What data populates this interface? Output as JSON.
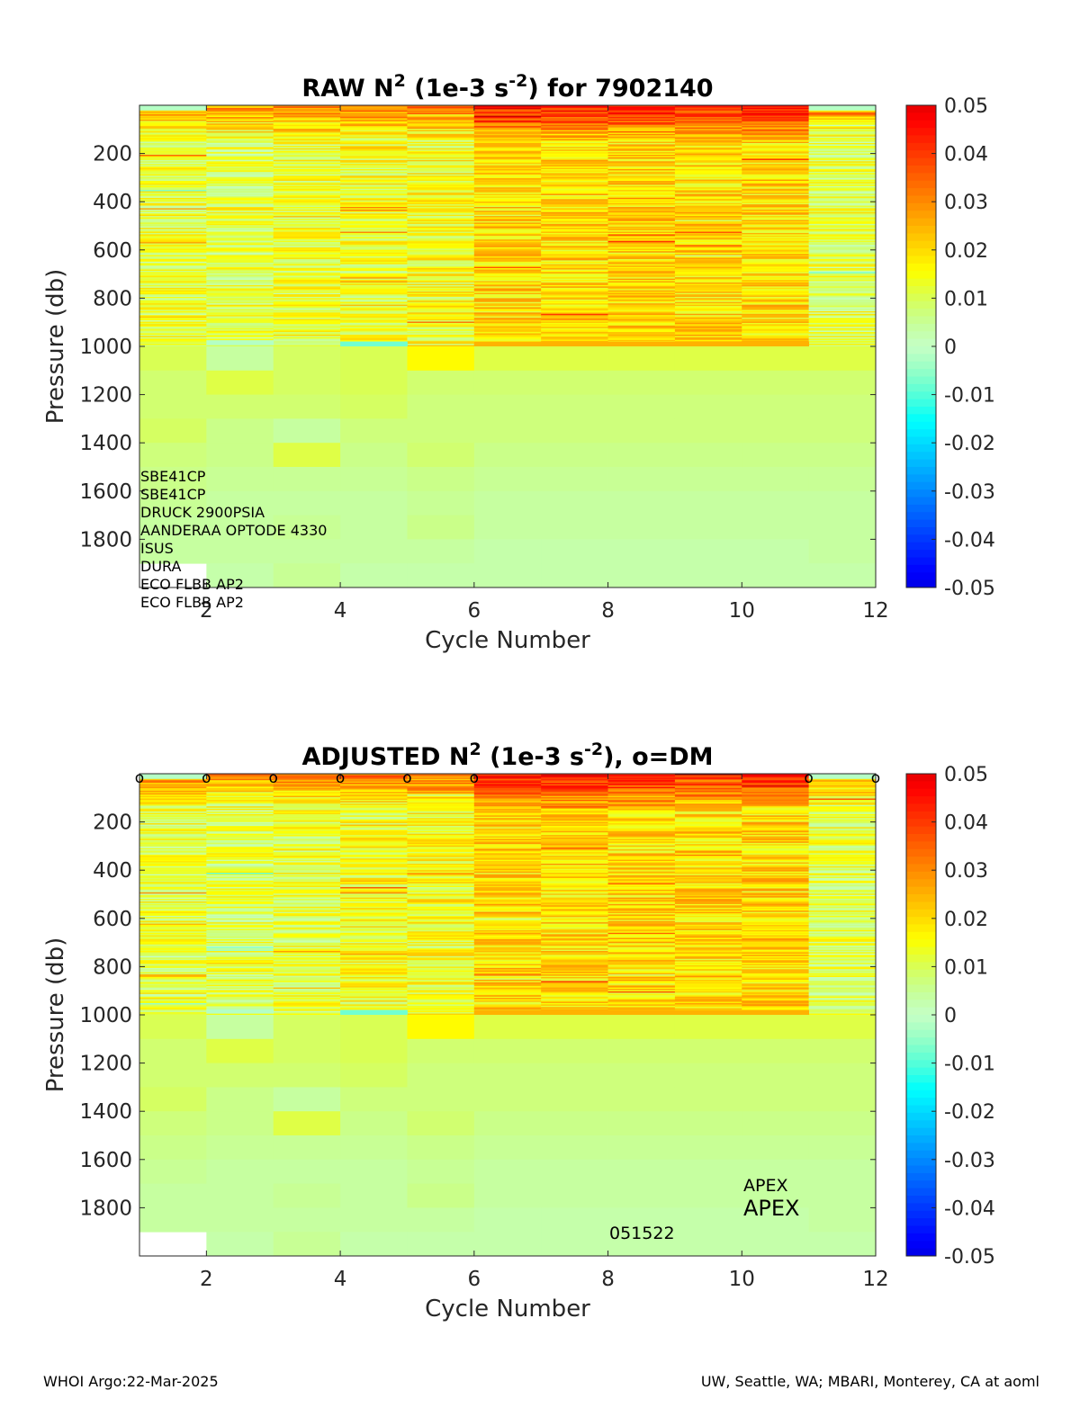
{
  "footer": {
    "left": "WHOI Argo:22-Mar-2025",
    "right": "UW, Seattle, WA; MBARI, Monterey, CA at aoml"
  },
  "chart_data": [
    {
      "type": "heatmap",
      "panel": "raw",
      "title_parts": [
        "RAW N",
        "2",
        " (1e-3 s",
        "-2",
        ") for 7902140"
      ],
      "xlabel": "Cycle Number",
      "ylabel": "Pressure (db)",
      "xlim": [
        1,
        12
      ],
      "ylim": [
        2000,
        0
      ],
      "xticks": [
        2,
        4,
        6,
        8,
        10,
        12
      ],
      "yticks": [
        200,
        400,
        600,
        800,
        1000,
        1200,
        1400,
        1600,
        1800
      ],
      "colorbar": {
        "colormap": "jet",
        "clim": [
          -0.05,
          0.05
        ],
        "ticks": [
          0.05,
          0.04,
          0.03,
          0.02,
          0.01,
          0,
          -0.01,
          -0.02,
          -0.03,
          -0.04,
          -0.05
        ],
        "tick_labels": [
          "0.05",
          "0.04",
          "0.03",
          "0.02",
          "0.01",
          "0",
          "-0.01",
          "-0.02",
          "-0.03",
          "-0.04",
          "-0.05"
        ]
      },
      "sensors": [
        "SBE41CP",
        "SBE41CP",
        "DRUCK 2900PSIA",
        "AANDERAA OPTODE 4330",
        "ISUS",
        "DURA",
        "ECO FLBB AP2",
        "ECO FLBB AP2"
      ],
      "cycles": [
        1,
        2,
        3,
        4,
        5,
        6,
        7,
        8,
        9,
        10,
        11
      ],
      "upper_mean": [
        0.011,
        0.01,
        0.012,
        0.013,
        0.014,
        0.02,
        0.02,
        0.02,
        0.02,
        0.02,
        0.01
      ],
      "deep_bins": [
        {
          "p0": 1000,
          "p1": 1100,
          "values": [
            0.01,
            0.004,
            0.009,
            0.01,
            0.016,
            0.011,
            0.011,
            0.011,
            0.011,
            0.011,
            0.011
          ]
        },
        {
          "p0": 1100,
          "p1": 1200,
          "values": [
            0.008,
            0.011,
            0.009,
            0.01,
            0.008,
            0.008,
            0.008,
            0.008,
            0.008,
            0.008,
            0.008
          ]
        },
        {
          "p0": 1200,
          "p1": 1300,
          "values": [
            0.008,
            0.008,
            0.008,
            0.009,
            0.007,
            0.007,
            0.007,
            0.007,
            0.007,
            0.007,
            0.007
          ]
        },
        {
          "p0": 1300,
          "p1": 1400,
          "values": [
            0.009,
            0.006,
            0.004,
            0.007,
            0.007,
            0.007,
            0.007,
            0.007,
            0.007,
            0.007,
            0.007
          ]
        },
        {
          "p0": 1400,
          "p1": 1500,
          "values": [
            0.007,
            0.006,
            0.011,
            0.006,
            0.008,
            0.006,
            0.006,
            0.006,
            0.006,
            0.006,
            0.006
          ]
        },
        {
          "p0": 1500,
          "p1": 1600,
          "values": [
            0.006,
            0.005,
            0.005,
            0.005,
            0.006,
            0.005,
            0.005,
            0.005,
            0.005,
            0.005,
            0.005
          ]
        },
        {
          "p0": 1600,
          "p1": 1700,
          "values": [
            0.005,
            0.004,
            0.004,
            0.004,
            0.005,
            0.004,
            0.004,
            0.004,
            0.004,
            0.004,
            0.004
          ]
        },
        {
          "p0": 1700,
          "p1": 1800,
          "values": [
            0.004,
            0.004,
            0.005,
            0.004,
            0.006,
            0.004,
            0.004,
            0.004,
            0.004,
            0.004,
            0.004
          ]
        },
        {
          "p0": 1800,
          "p1": 1900,
          "values": [
            0.004,
            0.004,
            0.004,
            0.004,
            0.004,
            0.003,
            0.003,
            0.003,
            0.003,
            0.003,
            0.004
          ]
        },
        {
          "p0": 1900,
          "p1": 2000,
          "values": [
            null,
            0.003,
            0.005,
            0.003,
            0.003,
            0.003,
            0.003,
            0.003,
            0.003,
            0.003,
            0.003
          ]
        }
      ],
      "features": [
        {
          "p": 990,
          "cycles": [
            4
          ],
          "value": -0.008
        },
        {
          "p": 990,
          "cycles": [
            6,
            7,
            8,
            9,
            10
          ],
          "value": 0.025
        },
        {
          "p": 985,
          "cycles": [
            2
          ],
          "value": -0.002
        }
      ]
    },
    {
      "type": "heatmap",
      "panel": "adjusted",
      "title_parts": [
        "ADJUSTED N",
        "2",
        " (1e-3 s",
        "-2",
        "), o=DM"
      ],
      "xlabel": "Cycle Number",
      "ylabel": "Pressure (db)",
      "xlim": [
        1,
        12
      ],
      "ylim": [
        2000,
        0
      ],
      "xticks": [
        2,
        4,
        6,
        8,
        10,
        12
      ],
      "yticks": [
        200,
        400,
        600,
        800,
        1000,
        1200,
        1400,
        1600,
        1800
      ],
      "colorbar": {
        "colormap": "jet",
        "clim": [
          -0.05,
          0.05
        ],
        "ticks": [
          0.05,
          0.04,
          0.03,
          0.02,
          0.01,
          0,
          -0.01,
          -0.02,
          -0.03,
          -0.04,
          -0.05
        ],
        "tick_labels": [
          "0.05",
          "0.04",
          "0.03",
          "0.02",
          "0.01",
          "0",
          "-0.01",
          "-0.02",
          "-0.03",
          "-0.04",
          "-0.05"
        ]
      },
      "dm_marker": "o",
      "dm_cycles": [
        1,
        2,
        3,
        4,
        5,
        6,
        11,
        12
      ],
      "annotations": {
        "platform_small": "APEX",
        "platform_large": "APEX",
        "id": "051522"
      },
      "cycles": [
        1,
        2,
        3,
        4,
        5,
        6,
        7,
        8,
        9,
        10,
        11
      ],
      "upper_mean": [
        0.011,
        0.01,
        0.012,
        0.013,
        0.014,
        0.02,
        0.02,
        0.02,
        0.02,
        0.02,
        0.01
      ],
      "deep_bins": [
        {
          "p0": 1000,
          "p1": 1100,
          "values": [
            0.01,
            0.004,
            0.009,
            0.01,
            0.016,
            0.011,
            0.011,
            0.011,
            0.011,
            0.011,
            0.011
          ]
        },
        {
          "p0": 1100,
          "p1": 1200,
          "values": [
            0.008,
            0.011,
            0.009,
            0.01,
            0.008,
            0.008,
            0.008,
            0.008,
            0.008,
            0.008,
            0.008
          ]
        },
        {
          "p0": 1200,
          "p1": 1300,
          "values": [
            0.008,
            0.008,
            0.008,
            0.009,
            0.007,
            0.007,
            0.007,
            0.007,
            0.007,
            0.007,
            0.007
          ]
        },
        {
          "p0": 1300,
          "p1": 1400,
          "values": [
            0.009,
            0.006,
            0.004,
            0.007,
            0.007,
            0.007,
            0.007,
            0.007,
            0.007,
            0.007,
            0.007
          ]
        },
        {
          "p0": 1400,
          "p1": 1500,
          "values": [
            0.007,
            0.006,
            0.011,
            0.006,
            0.008,
            0.006,
            0.006,
            0.006,
            0.006,
            0.006,
            0.006
          ]
        },
        {
          "p0": 1500,
          "p1": 1600,
          "values": [
            0.006,
            0.005,
            0.005,
            0.005,
            0.006,
            0.005,
            0.005,
            0.005,
            0.005,
            0.005,
            0.005
          ]
        },
        {
          "p0": 1600,
          "p1": 1700,
          "values": [
            0.005,
            0.004,
            0.004,
            0.004,
            0.005,
            0.004,
            0.004,
            0.004,
            0.004,
            0.004,
            0.004
          ]
        },
        {
          "p0": 1700,
          "p1": 1800,
          "values": [
            0.004,
            0.004,
            0.005,
            0.004,
            0.006,
            0.004,
            0.004,
            0.004,
            0.004,
            0.004,
            0.004
          ]
        },
        {
          "p0": 1800,
          "p1": 1900,
          "values": [
            0.004,
            0.004,
            0.004,
            0.004,
            0.004,
            0.003,
            0.003,
            0.003,
            0.003,
            0.003,
            0.004
          ]
        },
        {
          "p0": 1900,
          "p1": 2000,
          "values": [
            null,
            0.003,
            0.005,
            0.003,
            0.003,
            0.003,
            0.003,
            0.003,
            0.003,
            0.003,
            0.003
          ]
        }
      ],
      "features": [
        {
          "p": 990,
          "cycles": [
            4
          ],
          "value": -0.008
        },
        {
          "p": 990,
          "cycles": [
            6,
            7,
            8,
            9,
            10
          ],
          "value": 0.025
        },
        {
          "p": 985,
          "cycles": [
            2
          ],
          "value": -0.002
        }
      ]
    }
  ]
}
